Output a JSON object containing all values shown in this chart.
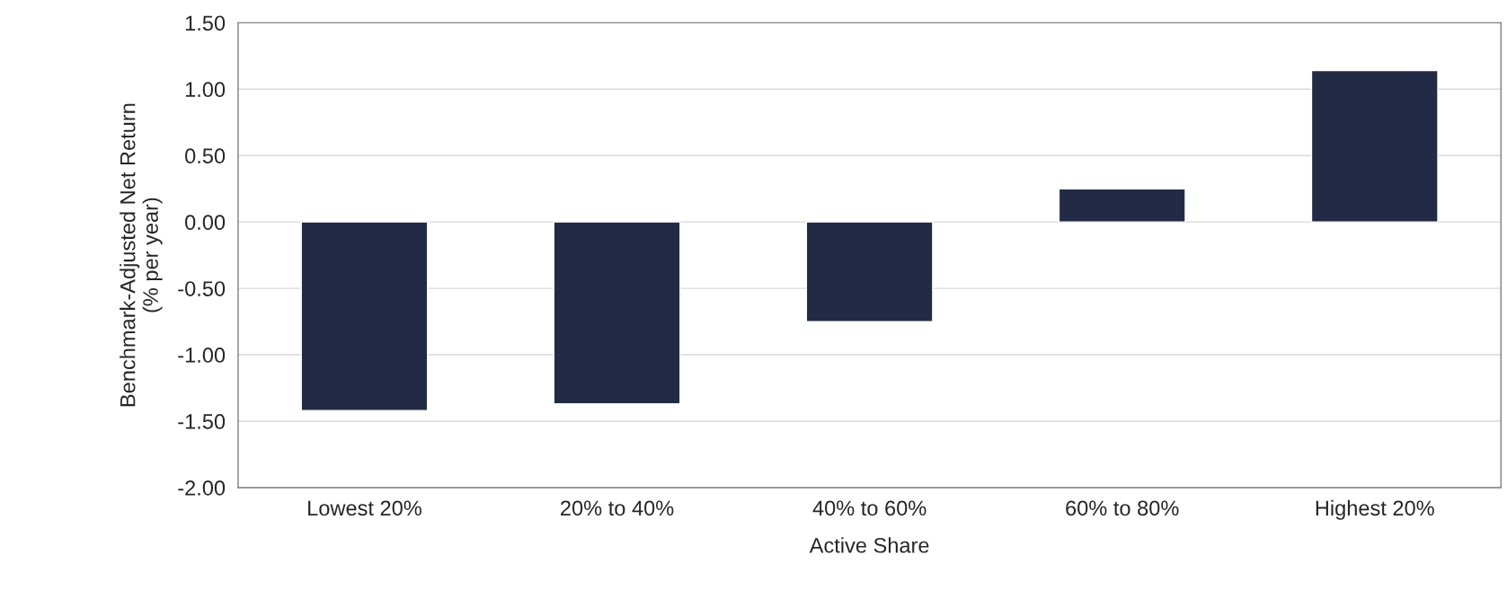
{
  "chart_data": {
    "type": "bar",
    "xlabel": "Active Share",
    "ylabel": "Benchmark-Adjusted Net Return\n(% per year)",
    "categories": [
      "Lowest 20%",
      "20% to 40%",
      "40% to 60%",
      "60% to 80%",
      "Highest 20%"
    ],
    "values": [
      -1.42,
      -1.37,
      -0.75,
      0.25,
      1.14
    ],
    "color": "#222a45",
    "ylim": [
      -2.0,
      1.5
    ],
    "yticks": [
      {
        "value": -2.0,
        "label": "-2.00"
      },
      {
        "value": -1.5,
        "label": "-1.50"
      },
      {
        "value": -1.0,
        "label": "-1.00"
      },
      {
        "value": -0.5,
        "label": "-0.50"
      },
      {
        "value": 0.0,
        "label": "0.00"
      },
      {
        "value": 0.5,
        "label": "0.50"
      },
      {
        "value": 1.0,
        "label": "1.00"
      },
      {
        "value": 1.5,
        "label": "1.50"
      }
    ],
    "grid": "y"
  }
}
